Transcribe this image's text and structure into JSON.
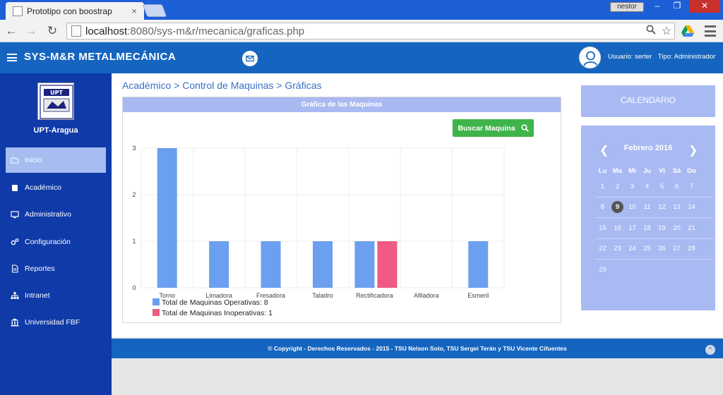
{
  "browser": {
    "tab_title": "Prototipo con boostrap",
    "tab_close": "×",
    "user_badge": "nestor",
    "url_host": "localhost",
    "url_path": ":8080/sys-m&r/mecanica/graficas.php",
    "win_min": "–",
    "win_max": "❐",
    "win_close": "✕"
  },
  "navbar": {
    "brand": "SYS-M&R  METALMECÁNICA",
    "user_label": "Usuario: serter",
    "role_label": "Tipo: Administrador"
  },
  "sidebar": {
    "brand": "UPT-Aragua",
    "items": [
      {
        "label": "Inicio",
        "icon": "folder-open-icon"
      },
      {
        "label": "Académico",
        "icon": "book-icon"
      },
      {
        "label": "Administrativo",
        "icon": "monitor-icon"
      },
      {
        "label": "Configuración",
        "icon": "gears-icon"
      },
      {
        "label": "Reportes",
        "icon": "document-icon"
      },
      {
        "label": "Intranet",
        "icon": "sitemap-icon"
      },
      {
        "label": "Universidad FBF",
        "icon": "institution-icon"
      }
    ]
  },
  "breadcrumb": "Académico > Control de Maquinas > Gráficas",
  "chart_panel": {
    "header": "Gráfica de las Maquinas",
    "search_button": "Buscar Maquina"
  },
  "chart_data": {
    "type": "bar",
    "categories": [
      "Torno",
      "Limadora",
      "Fresadora",
      "Taladro",
      "Rectificadora",
      "Afiladora",
      "Esmeril"
    ],
    "series": [
      {
        "name": "Total de Maquinas Operativas: 8",
        "values": [
          3,
          1,
          1,
          1,
          1,
          0,
          1
        ],
        "color": "#6b9ff0"
      },
      {
        "name": "Total de Maquinas Inoperativas: 1",
        "values": [
          0,
          0,
          0,
          0,
          1,
          0,
          0
        ],
        "color": "#ef5b82"
      }
    ],
    "ylim": [
      0,
      3
    ],
    "yticks": [
      "0",
      "1",
      "2",
      "3"
    ],
    "grid": true,
    "legend": "bottom-left"
  },
  "calendar": {
    "title": "CALENDARIO",
    "month_label": "Febrero 2016",
    "prev": "❮",
    "next": "❯",
    "weekdays": [
      "Lu",
      "Ma",
      "Mi",
      "Ju",
      "Vi",
      "Sá",
      "Do"
    ],
    "weeks": [
      [
        "1",
        "2",
        "3",
        "4",
        "5",
        "6",
        "7"
      ],
      [
        "8",
        "9",
        "10",
        "11",
        "12",
        "13",
        "14"
      ],
      [
        "15",
        "16",
        "17",
        "18",
        "19",
        "20",
        "21"
      ],
      [
        "22",
        "23",
        "24",
        "25",
        "26",
        "27",
        "28"
      ],
      [
        "29",
        "",
        "",
        "",
        "",
        "",
        ""
      ]
    ],
    "today": "9"
  },
  "footer": {
    "text": "© Copyright - Derechos Reservados - 2015 - TSU Nelson Soto, TSU Sergei Terán y TSU Vicente Cifuentes",
    "scroll_top": "⌃"
  }
}
